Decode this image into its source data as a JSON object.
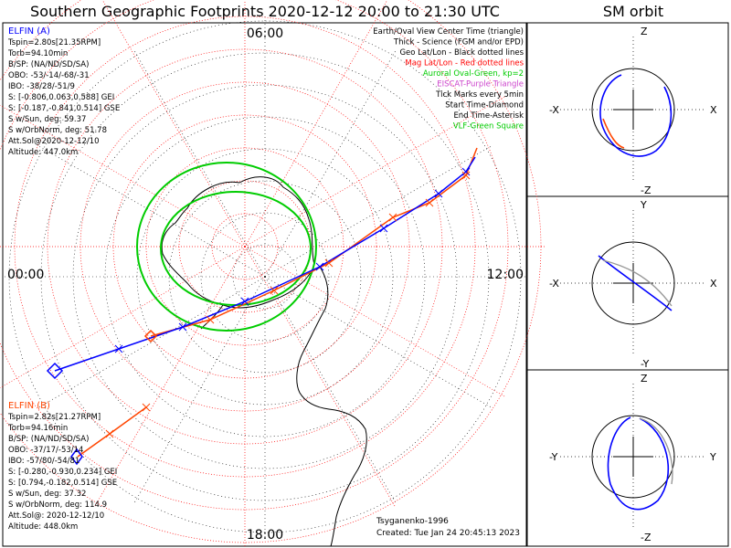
{
  "title": "Southern Geographic Footprints 2020-12-12 20:00 to 21:30 UTC",
  "orbit_title": "SM orbit",
  "clock_labels": {
    "top": "06:00",
    "left": "00:00",
    "right": "12:00",
    "bottom": "18:00"
  },
  "legend": [
    {
      "text": "Earth/Oval View Center Time (triangle)",
      "color": "#000000"
    },
    {
      "text": "Thick - Science (FGM and/or EPD)",
      "color": "#000000"
    },
    {
      "text": "Geo Lat/Lon - Black dotted lines",
      "color": "#000000"
    },
    {
      "text": "Mag Lat/Lon - Red dotted lines",
      "color": "#ff0000"
    },
    {
      "text": "Auroral Oval-Green, kp=2",
      "color": "#00cc00"
    },
    {
      "text": "EISCAT-Purple Triangle",
      "color": "#cc44cc"
    },
    {
      "text": "Tick Marks every 5min",
      "color": "#000000"
    },
    {
      "text": "Start Time-Diamond",
      "color": "#000000"
    },
    {
      "text": "End Time-Asterisk",
      "color": "#000000"
    },
    {
      "text": "VLF-Green Square",
      "color": "#00cc00"
    }
  ],
  "elfin_a": {
    "name": "ELFIN (A)",
    "color": "#0000ff",
    "lines": [
      "Tspin=2.80s[21.35RPM]",
      "Torb=94.10min",
      "B/SP: (NA/ND/SD/SA)",
      "OBO: -53/-14/-68/-31",
      "IBO: -38/28/-51/9",
      "S: [-0.806,0.063,0.588] GEI",
      "S: [-0.187,-0.841,0.514] GSE",
      "S w/Sun, deg: 59.37",
      "S w/OrbNorm, deg: 51.78",
      "Att.Sol@2020-12-12/10",
      "Altitude: 447.0km"
    ]
  },
  "elfin_b": {
    "name": "ELFIN (B)",
    "color": "#ff4500",
    "lines": [
      "Tspin=2.82s[21.27RPM]",
      "Torb=94.16min",
      "B/SP: (NA/ND/SD/SA)",
      "OBO: -37/17/-53/14",
      "IBO: -57/80/-54/81",
      "S: [-0.280,-0.930,0.234] GEI",
      "S: [0.794,-0.182,0.514] GSE",
      "S w/Sun, deg: 37.32",
      "S w/OrbNorm, deg: 114.9",
      "Att.Sol@: 2020-12-12/10",
      "Altitude: 448.0km"
    ]
  },
  "credits": {
    "model": "Tsyganenko-1996",
    "created": "Created: Tue Jan 24 20:45:13 2023"
  },
  "orbit_panels": [
    {
      "top": "Z",
      "bottom": "-Z",
      "left": "-X",
      "right": "X"
    },
    {
      "top": "Y",
      "bottom": "-Y",
      "left": "-X",
      "right": "X"
    },
    {
      "top": "Z",
      "bottom": "-Z",
      "left": "-Y",
      "right": "Y"
    }
  ],
  "colors": {
    "elfin_a": "#0000ff",
    "elfin_b": "#ff4500",
    "oval": "#00cc00",
    "mag_grid": "#ff0000",
    "geo_grid": "#000000"
  },
  "chart_data": {
    "type": "scatter",
    "title": "Southern Geographic Footprints 2020-12-12 20:00 to 21:30 UTC",
    "projection": "polar, south geographic pole",
    "clock_labels": [
      "06:00",
      "00:00",
      "12:00",
      "18:00"
    ],
    "series": [
      {
        "name": "ELFIN (A)",
        "kind": "footprint track"
      },
      {
        "name": "ELFIN (B)",
        "kind": "footprint track"
      },
      {
        "name": "Auroral Oval-Green, kp=2",
        "kind": "auroral oval"
      }
    ]
  }
}
